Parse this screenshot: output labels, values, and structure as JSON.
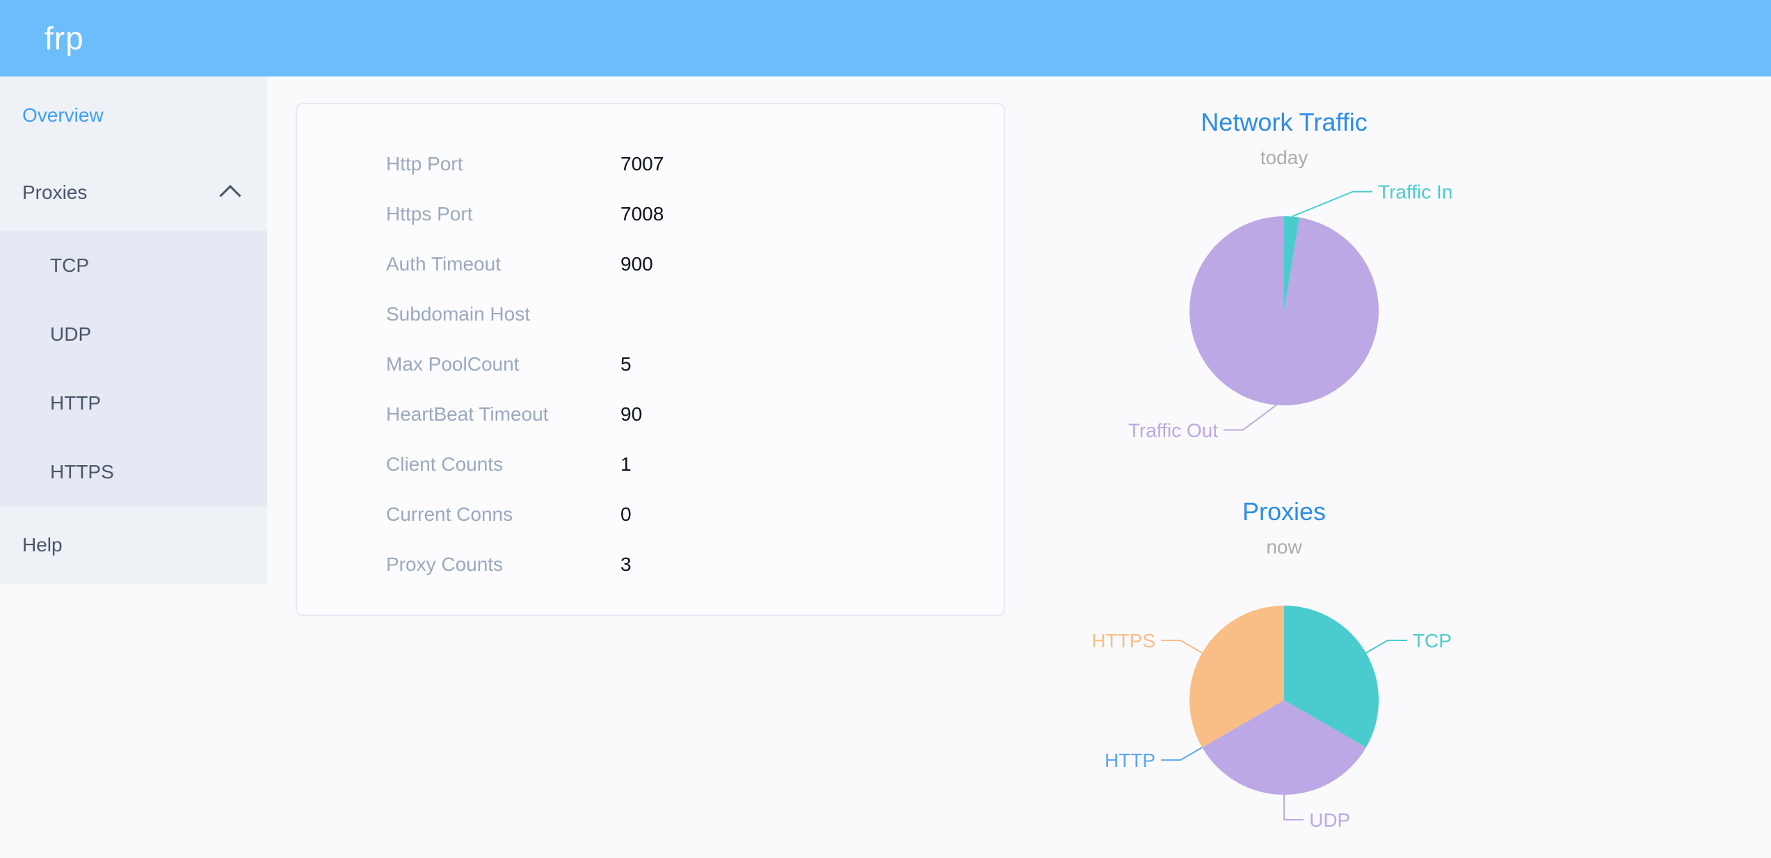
{
  "header": {
    "logo_text": "frp",
    "background_color": "#6cbdfb"
  },
  "sidebar": {
    "items": [
      {
        "label": "Overview",
        "active": true
      },
      {
        "label": "Proxies",
        "expanded": true,
        "children": [
          {
            "label": "TCP"
          },
          {
            "label": "UDP"
          },
          {
            "label": "HTTP"
          },
          {
            "label": "HTTPS"
          }
        ]
      },
      {
        "label": "Help"
      }
    ]
  },
  "overview_card": {
    "rows": [
      {
        "label": "Http Port",
        "value": "7007"
      },
      {
        "label": "Https Port",
        "value": "7008"
      },
      {
        "label": "Auth Timeout",
        "value": "900"
      },
      {
        "label": "Subdomain Host",
        "value": ""
      },
      {
        "label": "Max PoolCount",
        "value": "5"
      },
      {
        "label": "HeartBeat Timeout",
        "value": "90"
      },
      {
        "label": "Client Counts",
        "value": "1"
      },
      {
        "label": "Current Conns",
        "value": "0"
      },
      {
        "label": "Proxy Counts",
        "value": "3"
      }
    ]
  },
  "chart_data": [
    {
      "type": "pie",
      "title": "Network Traffic",
      "subtitle": "today",
      "legend_position": "none",
      "labels": "outside with leader lines",
      "slices": [
        {
          "name": "Traffic In",
          "percent": 2.6,
          "color": "#4accce",
          "label_dx": 85
        },
        {
          "name": "Traffic Out",
          "percent": 97.4,
          "color": "#bba8e4",
          "label_dx": -45
        }
      ]
    },
    {
      "type": "pie",
      "title": "Proxies",
      "subtitle": "now",
      "legend_position": "none",
      "labels": "outside with leader lines",
      "slices": [
        {
          "name": "TCP",
          "value": 1,
          "percent": 33.33,
          "color": "#4accce"
        },
        {
          "name": "UDP",
          "value": 1,
          "percent": 33.33,
          "color": "#bba8e4"
        },
        {
          "name": "HTTP",
          "value": 0,
          "percent": 0,
          "color": "#5ba8ef"
        },
        {
          "name": "HTTPS",
          "value": 1,
          "percent": 33.34,
          "color": "#f8be85"
        }
      ]
    }
  ],
  "theme": {
    "header_blue": "#6cbdfb",
    "chart_title_blue": "#2d8de8",
    "chart_subtitle_gray": "#ababab",
    "menu_active_blue": "#3f9ff8",
    "menu_text": "#48576a",
    "label_gray": "#9aa9bf"
  }
}
